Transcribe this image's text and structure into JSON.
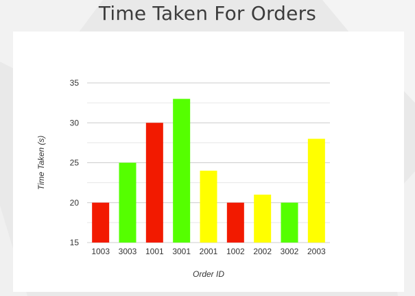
{
  "page": {
    "title": "Time Taken For Orders"
  },
  "colors": {
    "red": "#f21a00",
    "green": "#55ff00",
    "yellow": "#ffff00",
    "grid": "#cccccc",
    "text": "#333333",
    "background": "#e9e9e9",
    "card": "#ffffff"
  },
  "chart_data": {
    "type": "bar",
    "title": "",
    "xlabel": "Order ID",
    "ylabel": "Time Taken (s)",
    "ylim": [
      15,
      35
    ],
    "yticks": [
      15,
      20,
      25,
      30,
      35
    ],
    "grid": true,
    "legend": "none",
    "categories": [
      "1003",
      "3003",
      "1001",
      "3001",
      "2001",
      "1002",
      "2002",
      "3002",
      "2003"
    ],
    "values": [
      20,
      25,
      30,
      33,
      24,
      20,
      21,
      20,
      28
    ],
    "bar_colors": [
      "red",
      "green",
      "red",
      "green",
      "yellow",
      "red",
      "yellow",
      "green",
      "yellow"
    ]
  }
}
